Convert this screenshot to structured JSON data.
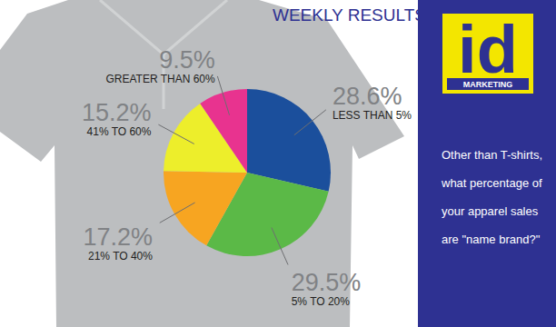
{
  "chart_data": {
    "type": "pie",
    "title": "WEEKLY RESULTS",
    "categories": [
      "LESS THAN 5%",
      "5% TO 20%",
      "21% TO 40%",
      "41% TO 60%",
      "GREATER THAN 60%"
    ],
    "values": [
      28.6,
      29.5,
      17.2,
      15.2,
      9.5
    ],
    "value_labels": [
      "28.6%",
      "29.5%",
      "17.2%",
      "15.2%",
      "9.5%"
    ],
    "colors": [
      "#1b4f9c",
      "#5bb947",
      "#f7a521",
      "#edee2b",
      "#e8338f"
    ],
    "data_labels": true
  },
  "logo": "id",
  "logo_subtitle": "MARKETING",
  "question": "Other than T-shirts, what percentage of your apparel sales are \"name brand?\""
}
